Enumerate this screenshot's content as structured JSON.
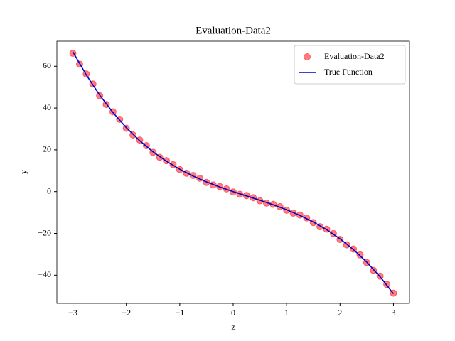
{
  "chart_data": {
    "type": "scatter",
    "title": "Evaluation-Data2",
    "xlabel": "z",
    "ylabel": "y",
    "xlim": [
      -3.3,
      3.3
    ],
    "ylim": [
      -53.5,
      72
    ],
    "xticks": [
      {
        "value": -3,
        "label": "−3"
      },
      {
        "value": -2,
        "label": "−2"
      },
      {
        "value": -1,
        "label": "−1"
      },
      0,
      1,
      2,
      3
    ],
    "yticks": [
      {
        "value": -40,
        "label": "−40"
      },
      {
        "value": -20,
        "label": "−20"
      },
      0,
      20,
      40,
      60
    ],
    "legend": "upper right",
    "series": [
      {
        "name": "Evaluation-Data2",
        "type": "scatter",
        "color": "#ff0000",
        "x": [
          -3,
          -2.875,
          -2.75,
          -2.625,
          -2.5,
          -2.375,
          -2.25,
          -2.125,
          -2,
          -1.875,
          -1.75,
          -1.625,
          -1.5,
          -1.375,
          -1.25,
          -1.125,
          -1,
          -0.875,
          -0.75,
          -0.625,
          -0.5,
          -0.375,
          -0.25,
          -0.125,
          0,
          0.125,
          0.25,
          0.375,
          0.5,
          0.625,
          0.75,
          0.875,
          1,
          1.125,
          1.25,
          1.375,
          1.5,
          1.625,
          1.75,
          1.875,
          2,
          2.125,
          2.25,
          2.375,
          2.5,
          2.625,
          2.75,
          2.875,
          3
        ],
        "values": [
          66.2,
          61.0,
          56.3,
          51.5,
          45.9,
          41.7,
          38.2,
          34.6,
          30.3,
          27.1,
          24.7,
          22.0,
          18.8,
          16.4,
          14.8,
          12.9,
          10.5,
          8.8,
          7.7,
          6.4,
          4.4,
          3.2,
          2.4,
          1.3,
          -0.2,
          -1.3,
          -1.9,
          -2.9,
          -4.4,
          -5.5,
          -6.1,
          -7.2,
          -8.9,
          -10.3,
          -11.2,
          -12.6,
          -14.8,
          -16.8,
          -18.0,
          -20.1,
          -22.9,
          -25.5,
          -27.5,
          -30.3,
          -34.0,
          -37.7,
          -40.5,
          -44.4,
          -48.6
        ]
      },
      {
        "name": "True Function",
        "type": "line",
        "color": "#0000cc",
        "x": [
          -3,
          -2.75,
          -2.5,
          -2.25,
          -2,
          -1.75,
          -1.5,
          -1.25,
          -1,
          -0.75,
          -0.5,
          -0.25,
          0,
          0.25,
          0.5,
          0.75,
          1,
          1.25,
          1.5,
          1.75,
          2,
          2.25,
          2.5,
          2.75,
          3
        ],
        "values": [
          66.9,
          55.89,
          46.25,
          37.86,
          30.6,
          24.37,
          19.05,
          14.53,
          10.7,
          7.44,
          4.65,
          2.21,
          0,
          -2.08,
          -4.15,
          -6.32,
          -8.7,
          -11.41,
          -14.55,
          -18.24,
          -22.6,
          -27.73,
          -33.75,
          -40.77,
          -48.9
        ]
      }
    ]
  }
}
